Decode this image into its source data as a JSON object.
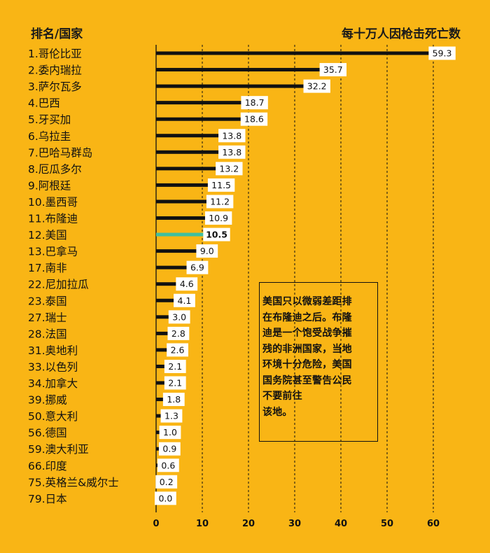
{
  "header": {
    "left": "排名/国家",
    "right": "每十万人因枪击死亡数"
  },
  "note": {
    "text": "美国只以微弱差距排\n在布隆迪之后。布隆\n迪是一个饱受战争摧\n残的非洲国家，当地\n环境十分危险，美国\n国务院甚至警告公民\n不要前往\n该地。"
  },
  "colors": {
    "background": "#f9b515",
    "bar": "#111111",
    "highlight": "#3fbfa0",
    "label_box": "#ffffff"
  },
  "chart_data": {
    "type": "bar",
    "orientation": "horizontal",
    "title": "",
    "xlabel": "每十万人因枪击死亡数",
    "ylabel": "排名/国家",
    "xlim": [
      0,
      60
    ],
    "xticks": [
      0,
      10,
      20,
      30,
      40,
      50,
      60
    ],
    "grid": "vertical-dashed",
    "categories": [
      "1.哥伦比亚",
      "2.委内瑞拉",
      "3.萨尔瓦多",
      "4.巴西",
      "5.牙买加",
      "6.乌拉圭",
      "7.巴哈马群岛",
      "8.厄瓜多尔",
      "9.阿根廷",
      "10.墨西哥",
      "11.布隆迪",
      "12.美国",
      "13.巴拿马",
      "17.南非",
      "22.尼加拉瓜",
      "23.泰国",
      "27.瑞士",
      "28.法国",
      "31.奥地利",
      "33.以色列",
      "34.加拿大",
      "39.挪威",
      "50.意大利",
      "56.德国",
      "59.澳大利亚",
      "66.印度",
      "75.英格兰&威尔士",
      "79.日本"
    ],
    "values": [
      59.3,
      35.7,
      32.2,
      18.7,
      18.6,
      13.8,
      13.8,
      13.2,
      11.5,
      11.2,
      10.9,
      10.5,
      9.0,
      6.9,
      4.6,
      4.1,
      3.0,
      2.8,
      2.6,
      2.1,
      2.1,
      1.8,
      1.3,
      1.0,
      0.9,
      0.6,
      0.2,
      0.0
    ],
    "value_labels": [
      "59.3",
      "35.7",
      "32.2",
      "18.7",
      "18.6",
      "13.8",
      "13.8",
      "13.2",
      "11.5",
      "11.2",
      "10.9",
      "10.5",
      "9.0",
      "6.9",
      "4.6",
      "4.1",
      "3.0",
      "2.8",
      "2.6",
      "2.1",
      "2.1",
      "1.8",
      "1.3",
      "1.0",
      "0.9",
      "0.6",
      "0.2",
      "0.0"
    ],
    "highlight": "12.美国"
  }
}
